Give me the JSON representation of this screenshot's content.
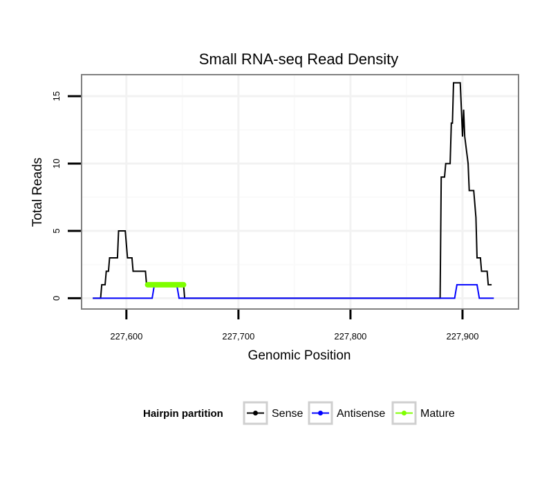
{
  "chart_data": {
    "type": "line",
    "title": "Small RNA-seq Read Density",
    "xlabel": "Genomic Position",
    "ylabel": "Total Reads",
    "xlim": [
      227560,
      227950
    ],
    "ylim": [
      -0.8,
      16.6
    ],
    "x_ticks": [
      227600,
      227700,
      227800,
      227900
    ],
    "x_tick_labels": [
      "227,600",
      "227,700",
      "227,800",
      "227,900"
    ],
    "y_ticks": [
      0,
      5,
      10,
      15
    ],
    "y_tick_labels": [
      "0",
      "5",
      "10",
      "15"
    ],
    "grid": true,
    "legend": {
      "title": "Hairpin partition",
      "position": "bottom"
    },
    "series": [
      {
        "name": "Sense",
        "color": "#000000",
        "points": [
          [
            227570,
            0
          ],
          [
            227577,
            0
          ],
          [
            227578,
            1
          ],
          [
            227580,
            1
          ],
          [
            227581,
            1
          ],
          [
            227582,
            2
          ],
          [
            227584,
            2
          ],
          [
            227585,
            3
          ],
          [
            227592,
            3
          ],
          [
            227593,
            5
          ],
          [
            227599,
            5
          ],
          [
            227600,
            4
          ],
          [
            227601,
            3
          ],
          [
            227605,
            3
          ],
          [
            227606,
            2
          ],
          [
            227617,
            2
          ],
          [
            227618,
            1
          ],
          [
            227651,
            1
          ],
          [
            227652,
            0
          ],
          [
            227880,
            0
          ],
          [
            227881,
            9
          ],
          [
            227884,
            9
          ],
          [
            227885,
            10
          ],
          [
            227889,
            10
          ],
          [
            227890,
            13
          ],
          [
            227891,
            13
          ],
          [
            227892,
            16
          ],
          [
            227898,
            16
          ],
          [
            227899,
            14
          ],
          [
            227900,
            12
          ],
          [
            227901,
            14
          ],
          [
            227902,
            12
          ],
          [
            227905,
            10
          ],
          [
            227906,
            8
          ],
          [
            227910,
            8
          ],
          [
            227912,
            6
          ],
          [
            227913,
            3
          ],
          [
            227916,
            3
          ],
          [
            227917,
            2
          ],
          [
            227922,
            2
          ],
          [
            227923,
            1
          ],
          [
            227925,
            1
          ],
          [
            227926,
            1
          ]
        ]
      },
      {
        "name": "Antisense",
        "color": "#0000ff",
        "points": [
          [
            227570,
            0
          ],
          [
            227623,
            0
          ],
          [
            227625,
            1
          ],
          [
            227645,
            1
          ],
          [
            227647,
            0
          ],
          [
            227893,
            0
          ],
          [
            227895,
            1
          ],
          [
            227913,
            1
          ],
          [
            227915,
            0
          ],
          [
            227928,
            0
          ]
        ]
      },
      {
        "name": "Mature",
        "color": "#7fff00",
        "points": [
          [
            227619,
            1
          ],
          [
            227651,
            1
          ]
        ]
      }
    ]
  }
}
